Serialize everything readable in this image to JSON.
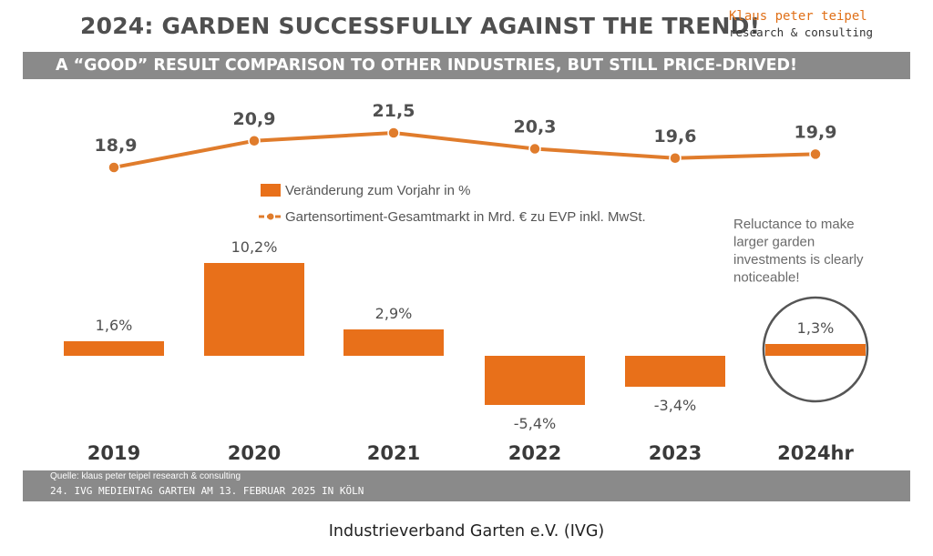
{
  "header": {
    "title": "2024: GARDEN SUCCESSFULLY AGAINST THE TREND!",
    "brand_name": "Klaus peter teipel",
    "brand_sub": "research & consulting",
    "subtitle": "A “GOOD” RESULT COMPARISON TO OTHER INDUSTRIES, BUT STILL PRICE-DRIVED!"
  },
  "chart_data": {
    "type": "bar",
    "categories": [
      "2019",
      "2020",
      "2021",
      "2022",
      "2023",
      "2024hr"
    ],
    "series": [
      {
        "name": "Veränderung zum Vorjahr in %",
        "type": "bar",
        "values": [
          1.6,
          10.2,
          2.9,
          -5.4,
          -3.4,
          1.3
        ],
        "labels": [
          "1,6%",
          "10,2%",
          "2,9%",
          "-5,4%",
          "-3,4%",
          "1,3%"
        ]
      },
      {
        "name": "Gartensortiment-Gesamtmarkt in Mrd. € zu EVP inkl. MwSt.",
        "type": "line",
        "values": [
          18.9,
          20.9,
          21.5,
          20.3,
          19.6,
          19.9
        ],
        "labels": [
          "18,9",
          "20,9",
          "21,5",
          "20,3",
          "19,6",
          "19,9"
        ]
      }
    ],
    "annotation": "Reluctance to make larger garden investments is clearly noticeable!",
    "highlighted_category": "2024hr",
    "colors": {
      "bar": "#e8701a",
      "line": "#e07c2c",
      "circle": "#555555"
    },
    "grid": false,
    "legend_position": "top-center"
  },
  "footer": {
    "source": "Quelle: klaus peter teipel research & consulting",
    "event": "24. IVG MEDIENTAG GARTEN AM 13. FEBRUAR 2025 IN KÖLN"
  },
  "caption": "Industrieverband Garten e.V. (IVG)"
}
